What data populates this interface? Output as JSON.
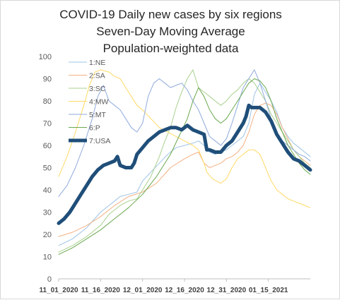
{
  "chart_data": {
    "type": "line",
    "title_lines": [
      "COVID-19 Daily new cases by six regions",
      "Seven-Day Moving Average",
      "Population-weighted data"
    ],
    "xlabel": "",
    "ylabel": "",
    "ylim": [
      0,
      100
    ],
    "yticks": [
      0,
      10,
      20,
      30,
      40,
      50,
      60,
      70,
      80,
      90,
      100
    ],
    "xlim": [
      0,
      90
    ],
    "x_ticks": [
      {
        "x": 0,
        "label": "11_01_2020"
      },
      {
        "x": 15,
        "label": "11_16_2020"
      },
      {
        "x": 30,
        "label": "12_01_2020"
      },
      {
        "x": 45,
        "label": "12_16_2020"
      },
      {
        "x": 60,
        "label": "12_31_2020"
      },
      {
        "x": 75,
        "label": "01_15_2021"
      }
    ],
    "grid": false,
    "legend_position": "top-left",
    "series": [
      {
        "name": "1:NE",
        "color": "#9dc3e6",
        "width": 1,
        "points": [
          [
            0,
            15
          ],
          [
            5,
            18
          ],
          [
            10,
            23
          ],
          [
            15,
            30
          ],
          [
            18,
            33
          ],
          [
            20,
            35
          ],
          [
            22,
            37
          ],
          [
            25,
            38
          ],
          [
            28,
            39
          ],
          [
            30,
            44
          ],
          [
            33,
            48
          ],
          [
            36,
            52
          ],
          [
            39,
            56
          ],
          [
            42,
            59
          ],
          [
            45,
            60
          ],
          [
            48,
            61
          ],
          [
            50,
            62
          ],
          [
            52,
            60
          ],
          [
            54,
            57
          ],
          [
            56,
            56
          ],
          [
            58,
            57
          ],
          [
            60,
            58
          ],
          [
            62,
            60
          ],
          [
            64,
            62
          ],
          [
            66,
            64
          ],
          [
            68,
            70
          ],
          [
            70,
            83
          ],
          [
            72,
            88
          ],
          [
            74,
            84
          ],
          [
            76,
            80
          ],
          [
            78,
            75
          ],
          [
            80,
            68
          ],
          [
            82,
            64
          ],
          [
            84,
            61
          ],
          [
            86,
            59
          ],
          [
            88,
            57
          ],
          [
            90,
            55
          ]
        ]
      },
      {
        "name": "2:SA",
        "color": "#f4b183",
        "width": 1,
        "points": [
          [
            0,
            19
          ],
          [
            5,
            21
          ],
          [
            10,
            24
          ],
          [
            15,
            28
          ],
          [
            20,
            33
          ],
          [
            25,
            37
          ],
          [
            30,
            39
          ],
          [
            35,
            43
          ],
          [
            40,
            50
          ],
          [
            45,
            54
          ],
          [
            48,
            56
          ],
          [
            50,
            57
          ],
          [
            52,
            52
          ],
          [
            54,
            50
          ],
          [
            56,
            51
          ],
          [
            58,
            52
          ],
          [
            60,
            54
          ],
          [
            62,
            55
          ],
          [
            64,
            57
          ],
          [
            66,
            60
          ],
          [
            68,
            66
          ],
          [
            70,
            74
          ],
          [
            72,
            78
          ],
          [
            74,
            79
          ],
          [
            76,
            78
          ],
          [
            78,
            74
          ],
          [
            80,
            68
          ],
          [
            82,
            63
          ],
          [
            84,
            58
          ],
          [
            86,
            55
          ],
          [
            88,
            53
          ],
          [
            90,
            51
          ]
        ]
      },
      {
        "name": "3:SC",
        "color": "#a9d18e",
        "width": 1,
        "points": [
          [
            0,
            12
          ],
          [
            5,
            15
          ],
          [
            10,
            19
          ],
          [
            15,
            24
          ],
          [
            18,
            29
          ],
          [
            22,
            33
          ],
          [
            25,
            35
          ],
          [
            28,
            36
          ],
          [
            30,
            40
          ],
          [
            33,
            46
          ],
          [
            36,
            55
          ],
          [
            38,
            62
          ],
          [
            40,
            68
          ],
          [
            42,
            77
          ],
          [
            44,
            84
          ],
          [
            46,
            90
          ],
          [
            48,
            94
          ],
          [
            50,
            86
          ],
          [
            52,
            84
          ],
          [
            54,
            82
          ],
          [
            56,
            80
          ],
          [
            58,
            78
          ],
          [
            60,
            80
          ],
          [
            62,
            83
          ],
          [
            64,
            85
          ],
          [
            66,
            88
          ],
          [
            68,
            90
          ],
          [
            70,
            88
          ],
          [
            72,
            84
          ],
          [
            74,
            80
          ],
          [
            76,
            74
          ],
          [
            78,
            70
          ],
          [
            80,
            66
          ],
          [
            82,
            62
          ],
          [
            84,
            58
          ],
          [
            86,
            55
          ],
          [
            88,
            52
          ],
          [
            90,
            50
          ]
        ]
      },
      {
        "name": "4:MW",
        "color": "#ffd966",
        "width": 1,
        "points": [
          [
            0,
            46
          ],
          [
            3,
            55
          ],
          [
            6,
            66
          ],
          [
            9,
            78
          ],
          [
            11,
            87
          ],
          [
            13,
            93
          ],
          [
            15,
            94
          ],
          [
            18,
            93
          ],
          [
            20,
            91
          ],
          [
            22,
            90
          ],
          [
            24,
            86
          ],
          [
            26,
            82
          ],
          [
            28,
            78
          ],
          [
            30,
            76
          ],
          [
            33,
            72
          ],
          [
            36,
            68
          ],
          [
            39,
            66
          ],
          [
            42,
            64
          ],
          [
            45,
            62
          ],
          [
            48,
            60
          ],
          [
            50,
            58
          ],
          [
            52,
            52
          ],
          [
            53,
            48
          ],
          [
            55,
            45
          ],
          [
            58,
            43
          ],
          [
            60,
            45
          ],
          [
            62,
            50
          ],
          [
            64,
            54
          ],
          [
            66,
            56
          ],
          [
            68,
            58
          ],
          [
            70,
            58
          ],
          [
            72,
            56
          ],
          [
            74,
            50
          ],
          [
            76,
            44
          ],
          [
            78,
            40
          ],
          [
            80,
            38
          ],
          [
            82,
            36
          ],
          [
            84,
            35
          ],
          [
            86,
            34
          ],
          [
            88,
            33
          ],
          [
            90,
            32
          ]
        ]
      },
      {
        "name": "5:MT",
        "color": "#8faadc",
        "width": 1,
        "points": [
          [
            0,
            37
          ],
          [
            3,
            42
          ],
          [
            6,
            50
          ],
          [
            9,
            60
          ],
          [
            12,
            72
          ],
          [
            14,
            82
          ],
          [
            16,
            87
          ],
          [
            18,
            80
          ],
          [
            20,
            78
          ],
          [
            22,
            76
          ],
          [
            24,
            72
          ],
          [
            26,
            68
          ],
          [
            28,
            66
          ],
          [
            30,
            70
          ],
          [
            32,
            82
          ],
          [
            34,
            88
          ],
          [
            36,
            90
          ],
          [
            38,
            88
          ],
          [
            40,
            86
          ],
          [
            42,
            87
          ],
          [
            44,
            88
          ],
          [
            46,
            85
          ],
          [
            48,
            80
          ],
          [
            50,
            76
          ],
          [
            52,
            70
          ],
          [
            54,
            64
          ],
          [
            56,
            62
          ],
          [
            58,
            60
          ],
          [
            60,
            63
          ],
          [
            62,
            70
          ],
          [
            64,
            78
          ],
          [
            66,
            86
          ],
          [
            68,
            90
          ],
          [
            70,
            94
          ],
          [
            72,
            88
          ],
          [
            74,
            80
          ],
          [
            76,
            72
          ],
          [
            78,
            66
          ],
          [
            80,
            62
          ],
          [
            82,
            60
          ],
          [
            84,
            58
          ],
          [
            86,
            56
          ],
          [
            88,
            55
          ],
          [
            90,
            53
          ]
        ]
      },
      {
        "name": "6:P",
        "color": "#6aa84f",
        "width": 1,
        "points": [
          [
            0,
            11
          ],
          [
            5,
            14
          ],
          [
            10,
            18
          ],
          [
            15,
            22
          ],
          [
            20,
            27
          ],
          [
            25,
            32
          ],
          [
            30,
            38
          ],
          [
            35,
            46
          ],
          [
            40,
            56
          ],
          [
            43,
            64
          ],
          [
            46,
            72
          ],
          [
            48,
            80
          ],
          [
            50,
            86
          ],
          [
            52,
            82
          ],
          [
            54,
            76
          ],
          [
            56,
            72
          ],
          [
            58,
            70
          ],
          [
            60,
            72
          ],
          [
            62,
            76
          ],
          [
            64,
            80
          ],
          [
            66,
            84
          ],
          [
            68,
            88
          ],
          [
            70,
            90
          ],
          [
            72,
            89
          ],
          [
            74,
            86
          ],
          [
            76,
            80
          ],
          [
            78,
            72
          ],
          [
            80,
            66
          ],
          [
            82,
            60
          ],
          [
            84,
            56
          ],
          [
            86,
            52
          ],
          [
            88,
            49
          ],
          [
            90,
            47
          ]
        ]
      },
      {
        "name": "7:USA",
        "color": "#1f4e79",
        "width": 5,
        "points": [
          [
            0,
            25
          ],
          [
            2,
            27
          ],
          [
            4,
            30
          ],
          [
            6,
            34
          ],
          [
            8,
            38
          ],
          [
            10,
            42
          ],
          [
            12,
            46
          ],
          [
            14,
            49
          ],
          [
            16,
            51
          ],
          [
            18,
            52
          ],
          [
            20,
            53
          ],
          [
            21,
            55
          ],
          [
            22,
            51
          ],
          [
            24,
            50
          ],
          [
            26,
            50
          ],
          [
            27,
            52
          ],
          [
            28,
            56
          ],
          [
            30,
            59
          ],
          [
            32,
            62
          ],
          [
            34,
            64
          ],
          [
            36,
            66
          ],
          [
            38,
            67
          ],
          [
            40,
            68
          ],
          [
            42,
            68
          ],
          [
            44,
            67
          ],
          [
            46,
            69
          ],
          [
            48,
            67
          ],
          [
            50,
            66
          ],
          [
            52,
            65
          ],
          [
            53,
            58
          ],
          [
            54,
            58
          ],
          [
            56,
            57
          ],
          [
            58,
            57
          ],
          [
            60,
            60
          ],
          [
            62,
            62
          ],
          [
            64,
            66
          ],
          [
            66,
            70
          ],
          [
            67,
            73
          ],
          [
            68,
            78
          ],
          [
            69,
            77
          ],
          [
            70,
            77
          ],
          [
            72,
            77
          ],
          [
            74,
            75
          ],
          [
            76,
            71
          ],
          [
            78,
            65
          ],
          [
            80,
            61
          ],
          [
            82,
            57
          ],
          [
            84,
            54
          ],
          [
            86,
            53
          ],
          [
            88,
            51
          ],
          [
            90,
            49
          ]
        ]
      }
    ]
  }
}
